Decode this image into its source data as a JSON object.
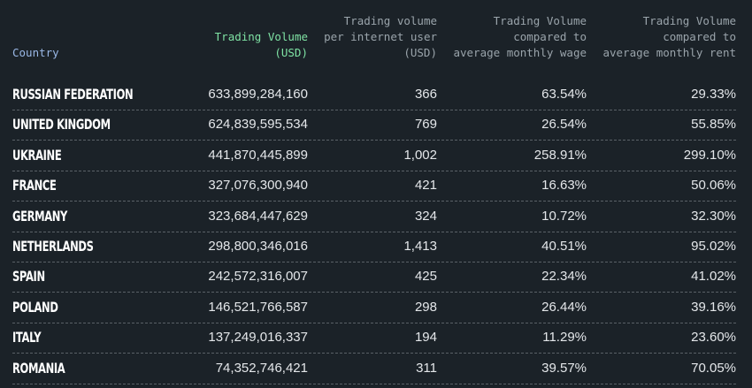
{
  "table": {
    "columns": [
      [
        "Country"
      ],
      [
        "Trading Volume",
        "(USD)"
      ],
      [
        "Trading volume",
        "per internet user",
        "(USD)"
      ],
      [
        "Trading Volume",
        "compared to",
        "average monthly wage"
      ],
      [
        "Trading Volume",
        "compared to",
        "average monthly rent"
      ]
    ],
    "rows": [
      [
        "RUSSIAN FEDERATION",
        "633,899,284,160",
        "366",
        "63.54%",
        "29.33%"
      ],
      [
        "UNITED KINGDOM",
        "624,839,595,534",
        "769",
        "26.54%",
        "55.85%"
      ],
      [
        "UKRAINE",
        "441,870,445,899",
        "1,002",
        "258.91%",
        "299.10%"
      ],
      [
        "FRANCE",
        "327,076,300,940",
        "421",
        "16.63%",
        "50.06%"
      ],
      [
        "GERMANY",
        "323,684,447,629",
        "324",
        "10.72%",
        "32.30%"
      ],
      [
        "NETHERLANDS",
        "298,800,346,016",
        "1,413",
        "40.51%",
        "95.02%"
      ],
      [
        "SPAIN",
        "242,572,316,007",
        "425",
        "22.34%",
        "41.02%"
      ],
      [
        "POLAND",
        "146,521,766,587",
        "298",
        "26.44%",
        "39.16%"
      ],
      [
        "ITALY",
        "137,249,016,337",
        "194",
        "11.29%",
        "23.60%"
      ],
      [
        "ROMANIA",
        "74,352,746,421",
        "311",
        "39.57%",
        "70.05%"
      ]
    ]
  }
}
